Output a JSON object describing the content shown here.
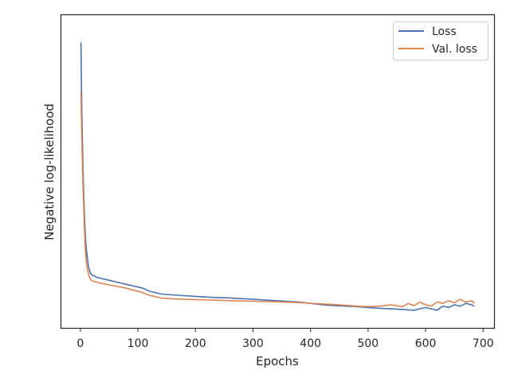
{
  "chart_data": {
    "type": "line",
    "title": "",
    "xlabel": "Epochs",
    "ylabel": "Negative log-likelihood",
    "xlim": [
      -33,
      719
    ],
    "ylim": [
      -0.05,
      1.1
    ],
    "x_ticks": [
      0,
      100,
      200,
      300,
      400,
      500,
      600,
      700
    ],
    "x_tick_labels": [
      "0",
      "100",
      "200",
      "300",
      "400",
      "500",
      "600",
      "700"
    ],
    "y_ticks_visible": false,
    "grid": false,
    "legend": {
      "position": "top-right"
    },
    "series": [
      {
        "name": "Loss",
        "color": "#4c72b0",
        "x": [
          1,
          2,
          3,
          4,
          5,
          6,
          7,
          8,
          9,
          10,
          12,
          14,
          16,
          18,
          20,
          25,
          30,
          40,
          50,
          60,
          70,
          80,
          90,
          100,
          110,
          120,
          130,
          140,
          150,
          170,
          200,
          230,
          260,
          300,
          340,
          380,
          400,
          420,
          440,
          460,
          480,
          500,
          520,
          540,
          560,
          570,
          580,
          590,
          600,
          610,
          620,
          630,
          640,
          650,
          660,
          670,
          680,
          685
        ],
        "values": [
          1.0,
          0.82,
          0.7,
          0.6,
          0.51,
          0.43,
          0.37,
          0.32,
          0.28,
          0.25,
          0.21,
          0.18,
          0.16,
          0.15,
          0.145,
          0.14,
          0.135,
          0.13,
          0.125,
          0.12,
          0.115,
          0.11,
          0.105,
          0.1,
          0.095,
          0.085,
          0.08,
          0.075,
          0.073,
          0.07,
          0.066,
          0.062,
          0.06,
          0.055,
          0.05,
          0.045,
          0.04,
          0.035,
          0.032,
          0.03,
          0.028,
          0.025,
          0.022,
          0.02,
          0.018,
          0.016,
          0.015,
          0.02,
          0.025,
          0.02,
          0.015,
          0.03,
          0.025,
          0.035,
          0.03,
          0.04,
          0.035,
          0.03
        ]
      },
      {
        "name": "Val. loss",
        "color": "#dd8452",
        "x": [
          1,
          2,
          3,
          4,
          5,
          6,
          7,
          8,
          9,
          10,
          12,
          14,
          16,
          18,
          20,
          25,
          30,
          40,
          50,
          60,
          70,
          80,
          90,
          100,
          110,
          120,
          130,
          140,
          150,
          170,
          200,
          230,
          260,
          300,
          340,
          380,
          400,
          420,
          440,
          460,
          480,
          500,
          520,
          540,
          560,
          570,
          580,
          590,
          600,
          610,
          620,
          630,
          640,
          650,
          660,
          670,
          680,
          685
        ],
        "values": [
          0.82,
          0.7,
          0.6,
          0.52,
          0.45,
          0.38,
          0.32,
          0.27,
          0.23,
          0.2,
          0.17,
          0.15,
          0.135,
          0.128,
          0.123,
          0.12,
          0.117,
          0.112,
          0.108,
          0.104,
          0.1,
          0.096,
          0.09,
          0.085,
          0.078,
          0.07,
          0.065,
          0.06,
          0.058,
          0.056,
          0.054,
          0.052,
          0.05,
          0.048,
          0.046,
          0.043,
          0.04,
          0.038,
          0.036,
          0.033,
          0.03,
          0.028,
          0.03,
          0.035,
          0.028,
          0.04,
          0.032,
          0.045,
          0.035,
          0.03,
          0.045,
          0.04,
          0.05,
          0.042,
          0.055,
          0.045,
          0.05,
          0.04
        ]
      }
    ]
  }
}
